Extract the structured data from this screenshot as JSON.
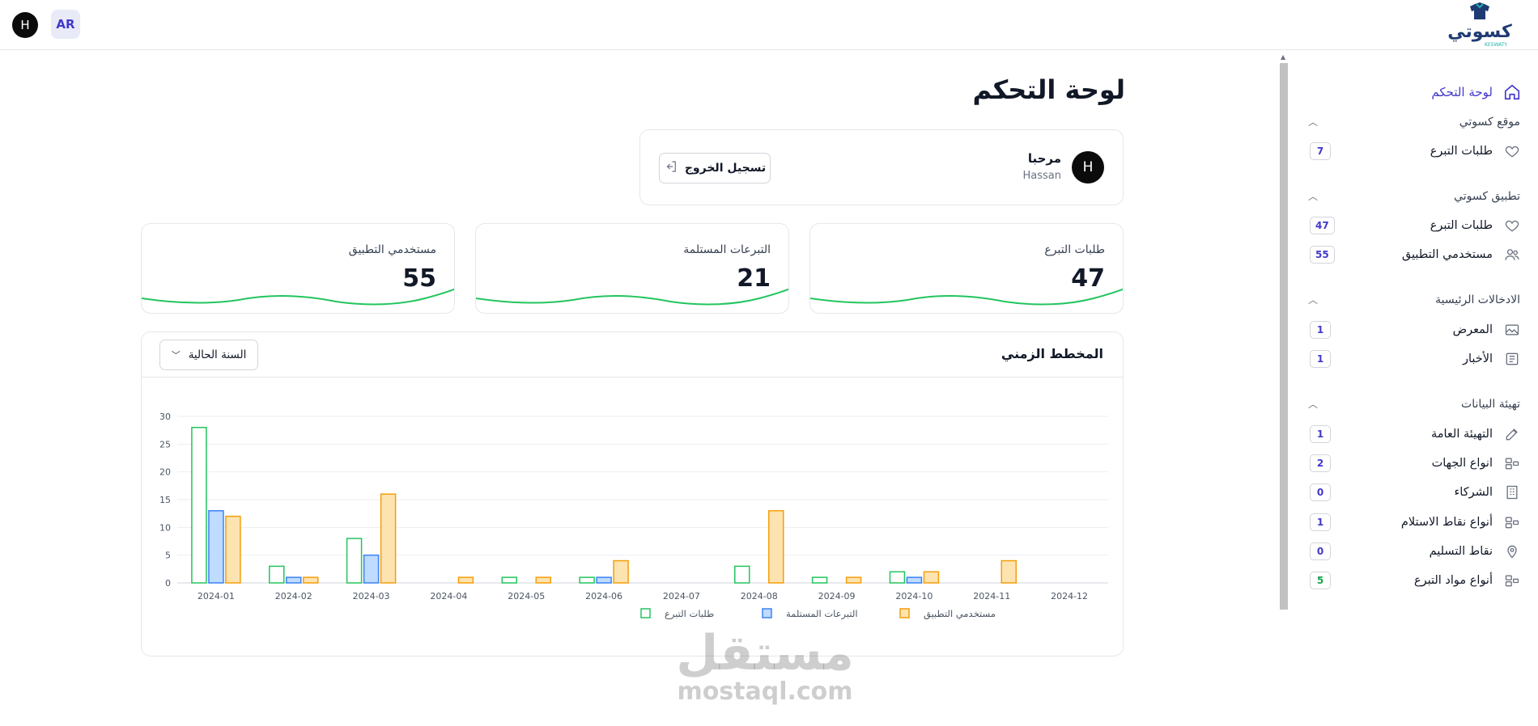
{
  "header": {
    "user_initial": "H",
    "lang_label": "AR",
    "logo_text": "كسوتي",
    "logo_sub": "KESWATY"
  },
  "sidebar": {
    "dashboard_label": "لوحة التحكم",
    "sections": [
      {
        "title": "موقع كسوتي",
        "items": [
          {
            "label": "طلبات التبرع",
            "count": "7",
            "icon": "heart-icon"
          }
        ]
      },
      {
        "title": "تطبيق كسوتي",
        "items": [
          {
            "label": "طلبات التبرع",
            "count": "47",
            "icon": "heart-icon"
          },
          {
            "label": "مستخدمي التطبيق",
            "count": "55",
            "icon": "users-icon"
          }
        ]
      },
      {
        "title": "الادخالات الرئيسية",
        "items": [
          {
            "label": "المعرض",
            "count": "1",
            "icon": "image-icon"
          },
          {
            "label": "الأخبار",
            "count": "1",
            "icon": "newspaper-icon"
          }
        ]
      },
      {
        "title": "تهيئة البيانات",
        "items": [
          {
            "label": "التهيئة العامة",
            "count": "1",
            "icon": "pencil-icon"
          },
          {
            "label": "انواع الجهات",
            "count": "2",
            "icon": "shapes-icon"
          },
          {
            "label": "الشركاء",
            "count": "0",
            "icon": "building-icon"
          },
          {
            "label": "أنواع نقاط الاستلام",
            "count": "1",
            "icon": "shapes-icon"
          },
          {
            "label": "نقاط التسليم",
            "count": "0",
            "icon": "map-pin-icon"
          },
          {
            "label": "أنواع مواد التبرع",
            "count": "5",
            "icon": "shapes-icon"
          }
        ]
      }
    ]
  },
  "main": {
    "page_title": "لوحة التحكم",
    "welcome": {
      "greeting": "مرحبا",
      "name": "Hassan",
      "avatar_initial": "H",
      "logout_label": "تسجيل الخروج"
    },
    "stats": [
      {
        "label": "طلبات التبرع",
        "value": "47"
      },
      {
        "label": "التبرعات المستلمة",
        "value": "21"
      },
      {
        "label": "مستخدمي التطبيق",
        "value": "55"
      }
    ],
    "timeline": {
      "title": "المخطط الزمني",
      "range_label": "السنة الحالية"
    }
  },
  "watermark": {
    "ar": "مستقل",
    "en": "mostaql.com"
  },
  "chart_data": {
    "type": "bar",
    "categories": [
      "2024-01",
      "2024-02",
      "2024-03",
      "2024-04",
      "2024-05",
      "2024-06",
      "2024-07",
      "2024-08",
      "2024-09",
      "2024-10",
      "2024-11",
      "2024-12"
    ],
    "series": [
      {
        "name": "طلبات التبرع",
        "values": [
          28,
          3,
          8,
          0,
          1,
          1,
          0,
          3,
          1,
          2,
          0,
          0
        ],
        "stroke": "#22c55e",
        "fill": "#ffffff"
      },
      {
        "name": "التبرعات المستلمة",
        "values": [
          13,
          1,
          5,
          0,
          0,
          1,
          0,
          0,
          0,
          1,
          0,
          0
        ],
        "stroke": "#3b82f6",
        "fill": "#bfdbfe"
      },
      {
        "name": "مستخدمي التطبيق",
        "values": [
          12,
          1,
          16,
          1,
          1,
          4,
          0,
          13,
          1,
          2,
          4,
          0
        ],
        "stroke": "#f59e0b",
        "fill": "#fde3b0"
      }
    ],
    "yticks": [
      0,
      5,
      10,
      15,
      20,
      25,
      30
    ],
    "ylim": [
      0,
      30
    ],
    "grid": true,
    "legend": "bottom"
  },
  "colors": {
    "accent": "#4338ca",
    "spark": "#22c55e"
  }
}
